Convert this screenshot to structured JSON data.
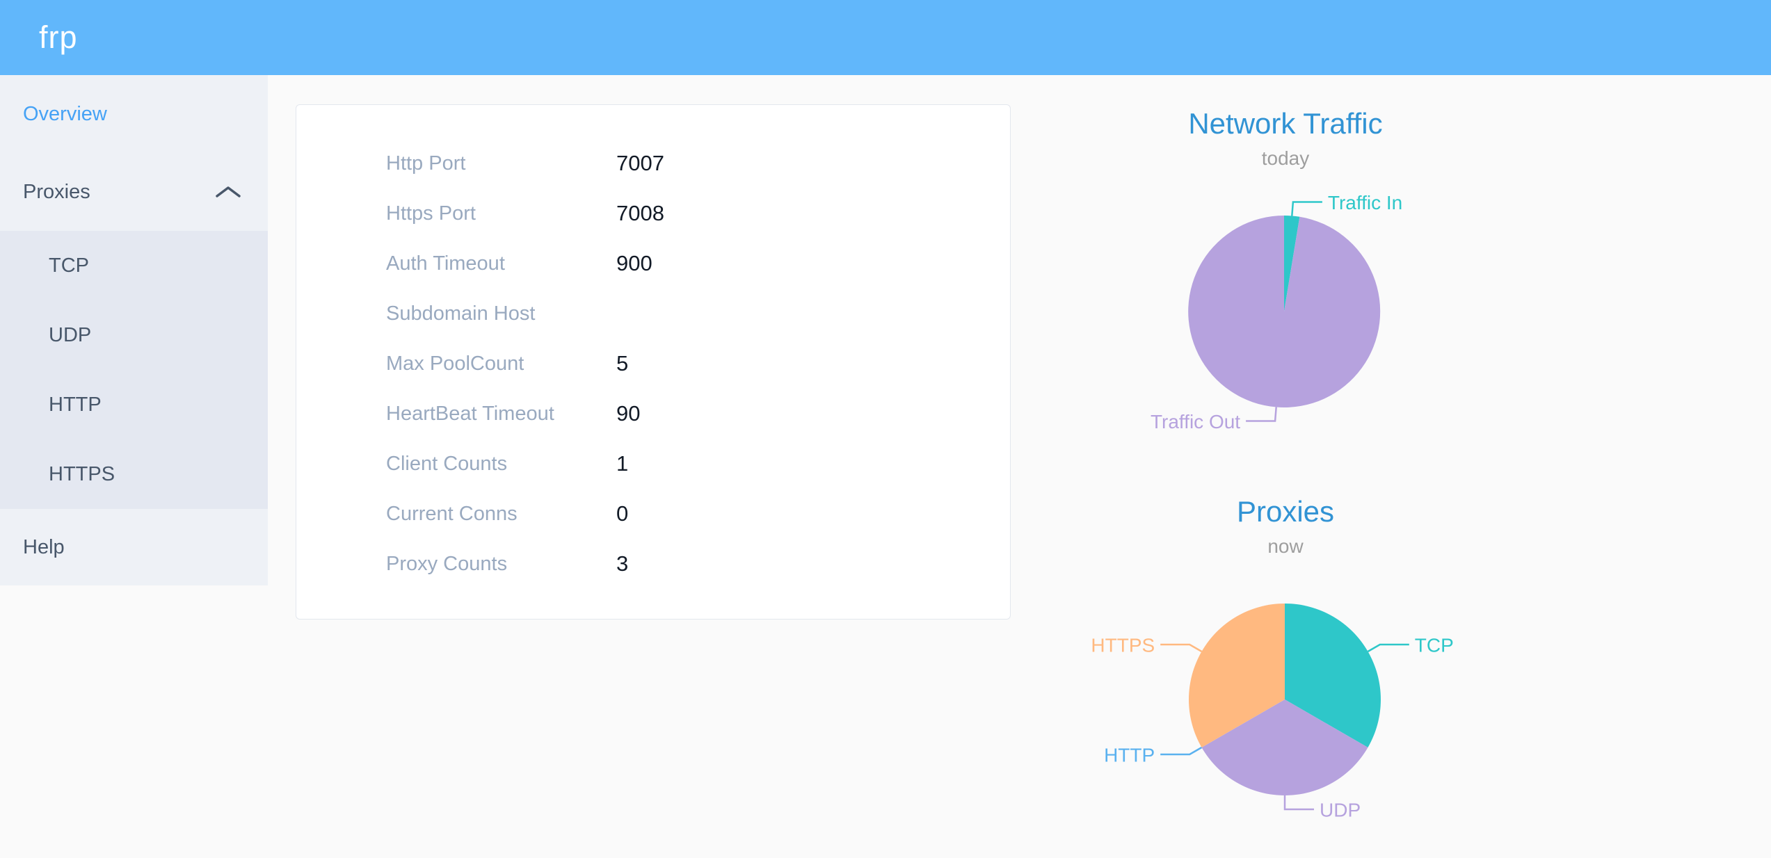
{
  "header": {
    "logo": "frp",
    "background": "#61b7fb"
  },
  "sidebar": {
    "overview": "Overview",
    "proxies": "Proxies",
    "help": "Help",
    "children": [
      "TCP",
      "UDP",
      "HTTP",
      "HTTPS"
    ],
    "active_item": "Overview",
    "active_color": "#45a2f5"
  },
  "overview_card": {
    "rows": [
      {
        "label": "Http Port",
        "value": "7007"
      },
      {
        "label": "Https Port",
        "value": "7008"
      },
      {
        "label": "Auth Timeout",
        "value": "900"
      },
      {
        "label": "Subdomain Host",
        "value": ""
      },
      {
        "label": "Max PoolCount",
        "value": "5"
      },
      {
        "label": "HeartBeat Timeout",
        "value": "90"
      },
      {
        "label": "Client Counts",
        "value": "1"
      },
      {
        "label": "Current Conns",
        "value": "0"
      },
      {
        "label": "Proxy Counts",
        "value": "3"
      }
    ]
  },
  "chart_data": [
    {
      "type": "pie",
      "title": "Network Traffic",
      "subtitle": "today",
      "legend_position": "none",
      "labels": "outside with leader lines",
      "units": "share of today's traffic in % (estimated from slice angles; no numeric labels shown)",
      "series": [
        {
          "name": "Traffic In",
          "value": 2.6,
          "color": "#2ec7c9"
        },
        {
          "name": "Traffic Out",
          "value": 97.4,
          "color": "#b6a2de"
        }
      ]
    },
    {
      "type": "pie",
      "title": "Proxies",
      "subtitle": "now",
      "legend_position": "none",
      "labels": "outside with leader lines",
      "units": "proxy counts by type (total matches Proxy Counts = 3)",
      "series": [
        {
          "name": "TCP",
          "value": 1,
          "color": "#2ec7c9"
        },
        {
          "name": "UDP",
          "value": 1,
          "color": "#b6a2de"
        },
        {
          "name": "HTTP",
          "value": 0,
          "color": "#5ab1ef"
        },
        {
          "name": "HTTPS",
          "value": 1,
          "color": "#ffb980"
        }
      ]
    }
  ],
  "colors": {
    "chart_title": "#3193d4",
    "chart_subtitle": "#9e9e9e",
    "sidebar_bg": "#eef1f6",
    "submenu_bg": "#e4e8f1",
    "sidebar_text": "#48576a",
    "card_label": "#99a9bf",
    "card_value": "#121a26"
  }
}
